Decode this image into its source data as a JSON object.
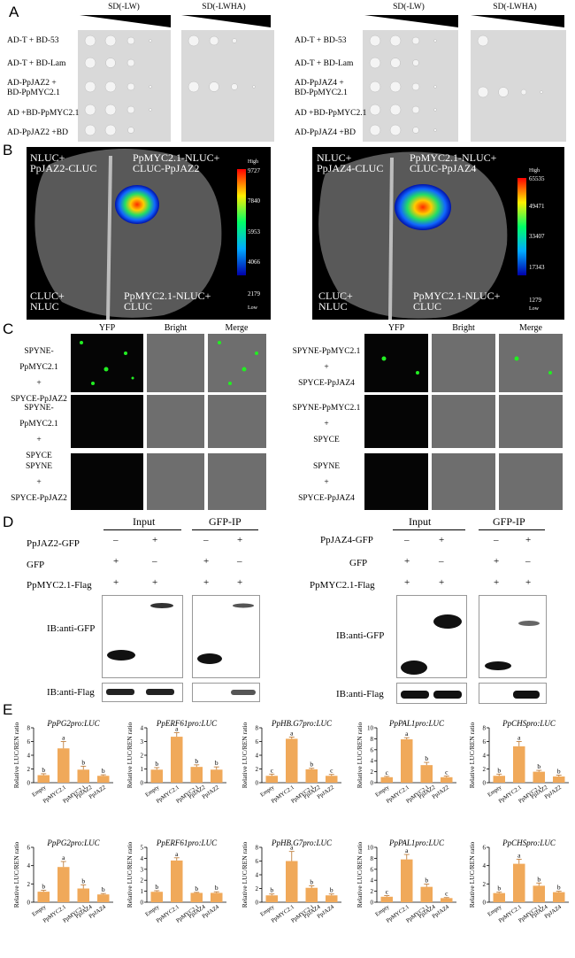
{
  "panels": {
    "a": "A",
    "b": "B",
    "c": "C",
    "d": "D",
    "e": "E"
  },
  "panelA": {
    "left": {
      "headers": [
        "SD(-LW)",
        "SD(-LWHA)"
      ],
      "rows": [
        "AD-T + BD-53",
        "AD-T + BD-Lam",
        "AD-PpJAZ2 +",
        "BD-PpMYC2.1",
        "AD +BD-PpMYC2.1",
        "AD-PpJAZ2 +BD"
      ]
    },
    "right": {
      "headers": [
        "SD(-LW)",
        "SD(-LWHA)"
      ],
      "rows": [
        "AD-T + BD-53",
        "AD-T + BD-Lam",
        "AD-PpJAZ4 +",
        "BD-PpMYC2.1",
        "AD +BD-PpMYC2.1",
        "AD-PpJAZ4 +BD"
      ]
    }
  },
  "panelB": {
    "left": {
      "tl": [
        "NLUC+",
        "PpJAZ2-CLUC"
      ],
      "tr": [
        "PpMYC2.1-NLUC+",
        "CLUC-PpJAZ2"
      ],
      "bl": [
        "CLUC+",
        "NLUC"
      ],
      "br": [
        "PpMYC2.1-NLUC+",
        "CLUC"
      ],
      "scale": [
        "High",
        "9727",
        "7840",
        "5953",
        "4066",
        "2179",
        "Low"
      ]
    },
    "right": {
      "tl": [
        "NLUC+",
        "PpJAZ4-CLUC"
      ],
      "tr": [
        "PpMYC2.1-NLUC+",
        "CLUC-PpJAZ4"
      ],
      "bl": [
        "CLUC+",
        "NLUC"
      ],
      "br": [
        "PpMYC2.1-NLUC+",
        "CLUC"
      ],
      "scale": [
        "High",
        "65535",
        "49471",
        "33407",
        "17343",
        "1279",
        "Low"
      ]
    }
  },
  "panelC": {
    "cols": [
      "YFP",
      "Bright",
      "Merge"
    ],
    "left": [
      [
        "SPYNE-PpMYC2.1",
        "+",
        "SPYCE-PpJAZ2"
      ],
      [
        "SPYNE-PpMYC2.1",
        "+",
        "SPYCE"
      ],
      [
        "SPYNE",
        "+",
        "SPYCE-PpJAZ2"
      ]
    ],
    "right": [
      [
        "SPYNE-PpMYC2.1",
        "+",
        "SPYCE-PpJAZ4"
      ],
      [
        "SPYNE-PpMYC2.1",
        "+",
        "SPYCE"
      ],
      [
        "SPYNE",
        "+",
        "SPYCE-PpJAZ4"
      ]
    ]
  },
  "panelD": {
    "input": "Input",
    "gfpip": "GFP-IP",
    "left": {
      "rows": [
        "PpJAZ2-GFP",
        "GFP",
        "PpMYC2.1-Flag"
      ],
      "ib1": "IB:anti-GFP",
      "ib2": "IB:anti-Flag"
    },
    "right": {
      "rows": [
        "PpJAZ4-GFP",
        "GFP",
        "PpMYC2.1-Flag"
      ],
      "ib1": "IB:anti-GFP",
      "ib2": "IB:anti-Flag"
    },
    "signs": {
      "minus": "–",
      "plus": "+"
    }
  },
  "chart_data": [
    {
      "type": "bar",
      "title": "PpPG2pro:LUC",
      "ylabel": "Relative LUC/REN ratio",
      "categories": [
        "Empty",
        "PpMYC2.1",
        "PpMYC2.1 PpJAZ2",
        "PpJAZ2"
      ],
      "values": [
        1.1,
        5.0,
        1.9,
        1.0
      ],
      "errors": [
        0.2,
        1.0,
        0.5,
        0.15
      ],
      "letters": [
        "b",
        "a",
        "b",
        "b"
      ],
      "ylim": [
        0,
        8
      ],
      "ticks": [
        0,
        2,
        4,
        6,
        8
      ]
    },
    {
      "type": "bar",
      "title": "PpERF61pro:LUC",
      "ylabel": "Relative LUC/REN ratio",
      "categories": [
        "Empty",
        "PpMYC2.1",
        "PpMYC2.1 PpJAZ2",
        "PpJAZ2"
      ],
      "values": [
        0.95,
        3.35,
        1.15,
        0.95
      ],
      "errors": [
        0.15,
        0.3,
        0.15,
        0.2
      ],
      "letters": [
        "b",
        "a",
        "b",
        "b"
      ],
      "ylim": [
        0,
        4
      ],
      "ticks": [
        0,
        1,
        2,
        3,
        4
      ]
    },
    {
      "type": "bar",
      "title": "PpHB.G7pro:LUC",
      "ylabel": "Relative LUC/REN ratio",
      "categories": [
        "Empty",
        "PpMYC2.1",
        "PpMYC2.1 PpJAZ2",
        "PpJAZ2"
      ],
      "values": [
        1.0,
        6.4,
        1.95,
        1.0
      ],
      "errors": [
        0.25,
        0.25,
        0.15,
        0.2
      ],
      "letters": [
        "c",
        "a",
        "b",
        "c"
      ],
      "ylim": [
        0,
        8
      ],
      "ticks": [
        0,
        2,
        4,
        6,
        8
      ]
    },
    {
      "type": "bar",
      "title": "PpPAL1pro:LUC",
      "ylabel": "Relative LUC/REN ratio",
      "categories": [
        "Empty",
        "PpMYC2.1",
        "PpMYC2.1 PpJAZ2",
        "PpJAZ2"
      ],
      "values": [
        1.0,
        7.9,
        3.2,
        1.0
      ],
      "errors": [
        0.15,
        0.3,
        0.5,
        0.2
      ],
      "letters": [
        "c",
        "a",
        "b",
        "c"
      ],
      "ylim": [
        0,
        10
      ],
      "ticks": [
        0,
        2,
        4,
        6,
        8,
        10
      ]
    },
    {
      "type": "bar",
      "title": "PpCHSpro:LUC",
      "ylabel": "Relative LUC/REN ratio",
      "categories": [
        "Empty",
        "PpMYC2.1",
        "PpMYC2.1 PpJAZ2",
        "PpJAZ2"
      ],
      "values": [
        1.0,
        5.3,
        1.6,
        0.9
      ],
      "errors": [
        0.25,
        0.7,
        0.2,
        0.2
      ],
      "letters": [
        "b",
        "a",
        "b",
        "b"
      ],
      "ylim": [
        0,
        8
      ],
      "ticks": [
        0,
        2,
        4,
        6,
        8
      ]
    },
    {
      "type": "bar",
      "title": "PpPG2pro:LUC",
      "ylabel": "Relative LUC/REN ratio",
      "categories": [
        "Empty",
        "PpMYC2.1",
        "PpMYC2.1 PpJAZ4",
        "PpJAZ4"
      ],
      "values": [
        1.15,
        3.85,
        1.5,
        0.85
      ],
      "errors": [
        0.15,
        0.6,
        0.4,
        0.1
      ],
      "letters": [
        "b",
        "a",
        "b",
        "b"
      ],
      "ylim": [
        0,
        6
      ],
      "ticks": [
        0,
        2,
        4,
        6
      ]
    },
    {
      "type": "bar",
      "title": "PpERF61pro:LUC",
      "ylabel": "Relative LUC/REN ratio",
      "categories": [
        "Empty",
        "PpMYC2.1",
        "PpMYC2.1 PpJAZ4",
        "PpJAZ4"
      ],
      "values": [
        0.95,
        3.8,
        0.85,
        0.85
      ],
      "errors": [
        0.1,
        0.25,
        0.05,
        0.1
      ],
      "letters": [
        "b",
        "a",
        "b",
        "b"
      ],
      "ylim": [
        0,
        5
      ],
      "ticks": [
        0,
        1,
        2,
        3,
        4,
        5
      ]
    },
    {
      "type": "bar",
      "title": "PpHB.G7pro:LUC",
      "ylabel": "Relative LUC/REN ratio",
      "categories": [
        "Empty",
        "PpMYC2.1",
        "PpMYC2.1 PpJAZ4",
        "PpJAZ4"
      ],
      "values": [
        1.0,
        6.0,
        2.1,
        1.0
      ],
      "errors": [
        0.2,
        1.4,
        0.3,
        0.2
      ],
      "letters": [
        "b",
        "a",
        "b",
        "b"
      ],
      "ylim": [
        0,
        8
      ],
      "ticks": [
        0,
        2,
        4,
        6,
        8
      ]
    },
    {
      "type": "bar",
      "title": "PpPAL1pro:LUC",
      "ylabel": "Relative LUC/REN ratio",
      "categories": [
        "Empty",
        "PpMYC2.1",
        "PpMYC2.1 PpJAZ4",
        "PpJAZ4"
      ],
      "values": [
        1.0,
        7.8,
        2.8,
        0.75
      ],
      "errors": [
        0.2,
        0.9,
        0.5,
        0.1
      ],
      "letters": [
        "c",
        "a",
        "b",
        "c"
      ],
      "ylim": [
        0,
        10
      ],
      "ticks": [
        0,
        2,
        4,
        6,
        8,
        10
      ]
    },
    {
      "type": "bar",
      "title": "PpCHSpro:LUC",
      "ylabel": "Relative LUC/REN ratio",
      "categories": [
        "Empty",
        "PpMYC2.1",
        "PpMYC2.1 PpJAZ4",
        "PpJAZ4"
      ],
      "values": [
        1.0,
        4.2,
        1.8,
        1.1
      ],
      "errors": [
        0.1,
        0.5,
        0.3,
        0.1
      ],
      "letters": [
        "b",
        "a",
        "b",
        "b"
      ],
      "ylim": [
        0,
        6
      ],
      "ticks": [
        0,
        2,
        4,
        6
      ]
    }
  ],
  "colors": {
    "bar": "#f0a95a",
    "error": "#c08040"
  }
}
